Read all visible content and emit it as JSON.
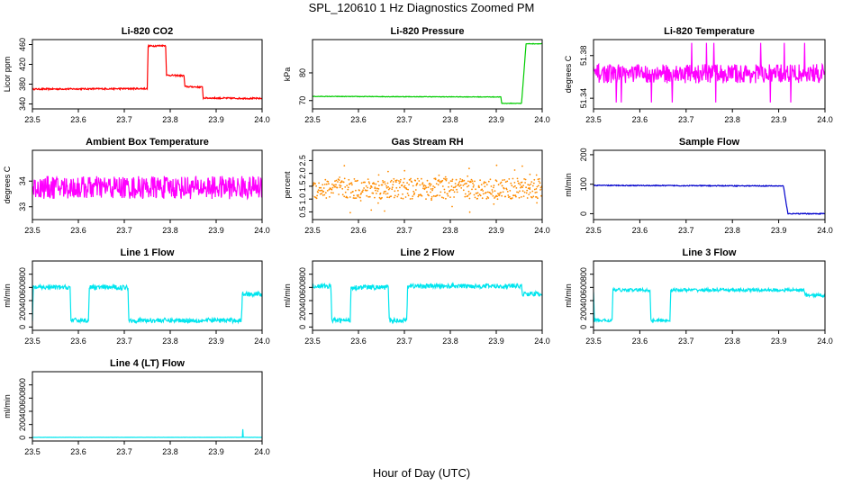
{
  "figure": {
    "title": "SPL_120610  1 Hz Diagnostics Zoomed PM",
    "xlabel": "Hour of Day (UTC)"
  },
  "chart_data": [
    {
      "type": "line",
      "title": "Li-820 CO2",
      "ylabel": "Licor ppm",
      "color": "#ff0000",
      "xlim": [
        23.5,
        24.0
      ],
      "ylim": [
        330,
        470
      ],
      "xticks": [
        "23.5",
        "23.6",
        "23.7",
        "23.8",
        "23.9",
        "24.0"
      ],
      "yticks": [
        340,
        380,
        420,
        460
      ],
      "noise": 1.5,
      "x": [
        23.5,
        23.75,
        23.752,
        23.79,
        23.792,
        23.83,
        23.832,
        23.87,
        23.872,
        24.0
      ],
      "values": [
        370,
        371,
        457,
        458,
        398,
        397,
        375,
        374,
        352,
        351
      ]
    },
    {
      "type": "line",
      "title": "Li-820 Pressure",
      "ylabel": "kPa",
      "color": "#00cc00",
      "xlim": [
        23.5,
        24.0
      ],
      "ylim": [
        67,
        92
      ],
      "xticks": [
        "23.5",
        "23.6",
        "23.7",
        "23.8",
        "23.9",
        "24.0"
      ],
      "yticks": [
        70,
        80
      ],
      "noise": 0.1,
      "x": [
        23.5,
        23.91,
        23.912,
        23.955,
        23.965,
        24.0
      ],
      "values": [
        71.5,
        71.3,
        69,
        69,
        90.5,
        90.5
      ]
    },
    {
      "type": "line",
      "title": "Li-820 Temperature",
      "ylabel": "degrees C",
      "color": "#ff00ff",
      "xlim": [
        23.5,
        24.0
      ],
      "ylim": [
        51.33,
        51.395
      ],
      "xticks": [
        "23.5",
        "23.6",
        "23.7",
        "23.8",
        "23.9",
        "24.0"
      ],
      "yticks": [
        51.34,
        51.38
      ],
      "noise": 0.009,
      "spikes": [
        51.392,
        51.336
      ],
      "x": [
        23.5,
        24.0
      ],
      "values": [
        51.363,
        51.363
      ]
    },
    {
      "type": "line",
      "title": "Ambient Box Temperature",
      "ylabel": "degrees C",
      "color": "#ff00ff",
      "xlim": [
        23.5,
        24.0
      ],
      "ylim": [
        32.5,
        35.2
      ],
      "xticks": [
        "23.5",
        "23.6",
        "23.7",
        "23.8",
        "23.9",
        "24.0"
      ],
      "yticks": [
        33.0,
        34.0
      ],
      "noise": 0.45,
      "x": [
        23.5,
        24.0
      ],
      "values": [
        33.75,
        33.75
      ]
    },
    {
      "type": "scatter",
      "title": "Gas Stream RH",
      "ylabel": "percent",
      "color": "#ff8c00",
      "xlim": [
        23.5,
        24.0
      ],
      "ylim": [
        0.2,
        2.9
      ],
      "xticks": [
        "23.5",
        "23.6",
        "23.7",
        "23.8",
        "23.9",
        "24.0"
      ],
      "yticks": [
        0.5,
        1.0,
        1.5,
        2.0,
        2.5
      ],
      "noise": 0.4,
      "x": [
        23.5,
        24.0
      ],
      "values": [
        1.4,
        1.4
      ]
    },
    {
      "type": "line",
      "title": "Sample Flow",
      "ylabel": "ml/min",
      "color": "#0000cc",
      "xlim": [
        23.5,
        24.0
      ],
      "ylim": [
        -20,
        215
      ],
      "xticks": [
        "23.5",
        "23.6",
        "23.7",
        "23.8",
        "23.9",
        "24.0"
      ],
      "yticks": [
        0,
        100,
        200
      ],
      "noise": 1.5,
      "x": [
        23.5,
        23.91,
        23.92,
        24.0
      ],
      "values": [
        96,
        94,
        0,
        0
      ]
    },
    {
      "type": "line",
      "title": "Line 1 Flow",
      "ylabel": "ml/min",
      "color": "#00e5ee",
      "xlim": [
        23.5,
        24.0
      ],
      "ylim": [
        -50,
        1000
      ],
      "xticks": [
        "23.5",
        "23.6",
        "23.7",
        "23.8",
        "23.9",
        "24.0"
      ],
      "yticks": [
        0,
        200,
        400,
        600,
        800
      ],
      "noise": 35,
      "x": [
        23.5,
        23.502,
        23.582,
        23.584,
        23.622,
        23.624,
        23.708,
        23.71,
        23.955,
        23.957,
        24.0
      ],
      "values": [
        100,
        600,
        600,
        100,
        100,
        600,
        600,
        100,
        100,
        500,
        500
      ]
    },
    {
      "type": "line",
      "title": "Line 2 Flow",
      "ylabel": "ml/min",
      "color": "#00e5ee",
      "xlim": [
        23.5,
        24.0
      ],
      "ylim": [
        -50,
        1000
      ],
      "xticks": [
        "23.5",
        "23.6",
        "23.7",
        "23.8",
        "23.9",
        "24.0"
      ],
      "yticks": [
        0,
        200,
        400,
        600,
        800
      ],
      "noise": 35,
      "x": [
        23.5,
        23.54,
        23.542,
        23.582,
        23.584,
        23.665,
        23.667,
        23.705,
        23.707,
        23.955,
        23.957,
        24.0
      ],
      "values": [
        620,
        620,
        100,
        100,
        600,
        600,
        100,
        100,
        620,
        620,
        500,
        500
      ]
    },
    {
      "type": "line",
      "title": "Line 3 Flow",
      "ylabel": "ml/min",
      "color": "#00e5ee",
      "xlim": [
        23.5,
        24.0
      ],
      "ylim": [
        -50,
        1000
      ],
      "xticks": [
        "23.5",
        "23.6",
        "23.7",
        "23.8",
        "23.9",
        "24.0"
      ],
      "yticks": [
        0,
        200,
        400,
        600,
        800
      ],
      "noise": 25,
      "x": [
        23.5,
        23.502,
        23.54,
        23.542,
        23.622,
        23.624,
        23.665,
        23.667,
        23.955,
        23.957,
        24.0
      ],
      "values": [
        520,
        100,
        100,
        560,
        560,
        100,
        100,
        560,
        560,
        480,
        480
      ]
    },
    {
      "type": "line",
      "title": "Line 4 (LT) Flow",
      "ylabel": "ml/min",
      "color": "#00e5ee",
      "xlim": [
        23.5,
        24.0
      ],
      "ylim": [
        -50,
        1000
      ],
      "xticks": [
        "23.5",
        "23.6",
        "23.7",
        "23.8",
        "23.9",
        "24.0"
      ],
      "yticks": [
        0,
        200,
        400,
        600,
        800
      ],
      "noise": 1,
      "x": [
        23.5,
        23.957,
        23.958,
        23.959,
        24.0
      ],
      "values": [
        5,
        5,
        130,
        5,
        5
      ]
    }
  ]
}
